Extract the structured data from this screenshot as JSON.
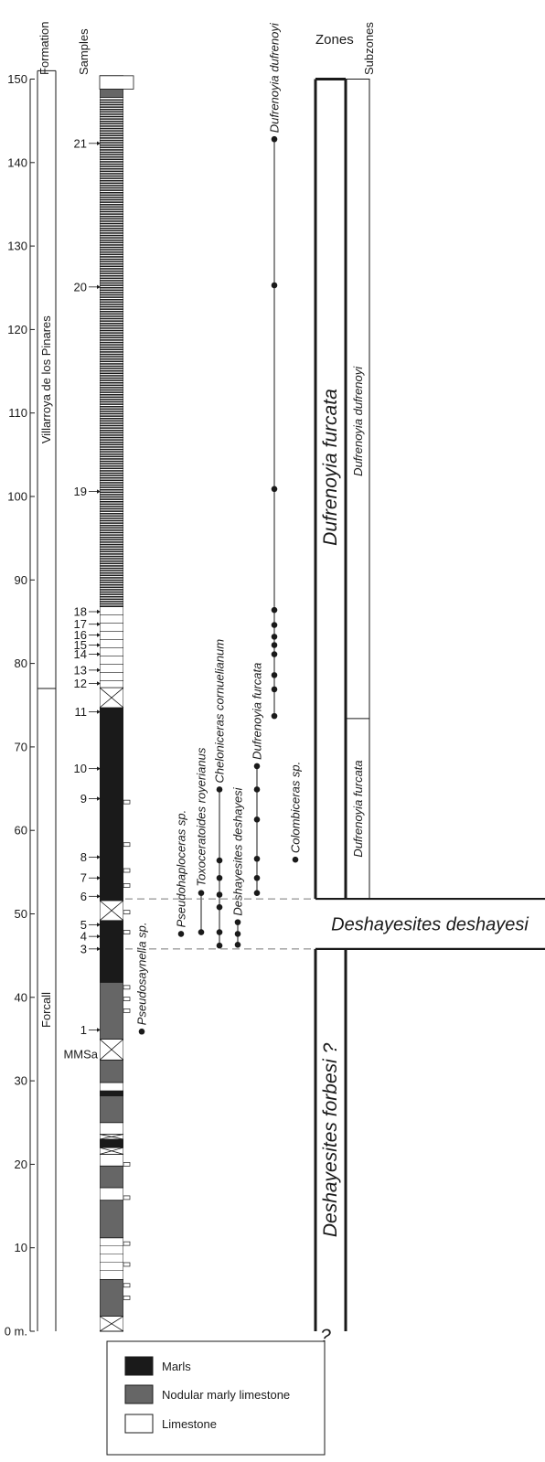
{
  "headers": {
    "formation": "Formation",
    "samples": "Samples",
    "zones": "Zones",
    "subzones": "Subzones"
  },
  "axis": {
    "ticks": [
      {
        "value": 0,
        "label": "0 m."
      },
      {
        "value": 10,
        "label": "10"
      },
      {
        "value": 20,
        "label": "20"
      },
      {
        "value": 30,
        "label": "30"
      },
      {
        "value": 40,
        "label": "40"
      },
      {
        "value": 50,
        "label": "50"
      },
      {
        "value": 60,
        "label": "60"
      },
      {
        "value": 70,
        "label": "70"
      },
      {
        "value": 80,
        "label": "80"
      },
      {
        "value": 90,
        "label": "90"
      },
      {
        "value": 100,
        "label": "100"
      },
      {
        "value": 110,
        "label": "110"
      },
      {
        "value": 120,
        "label": "120"
      },
      {
        "value": 130,
        "label": "130"
      },
      {
        "value": 140,
        "label": "140"
      },
      {
        "value": 150,
        "label": "150"
      }
    ],
    "range": [
      0,
      150
    ]
  },
  "formations": [
    {
      "name": "Forcall",
      "from": 0,
      "to": 77
    },
    {
      "name": "Villarroya de los Pinares",
      "from": 77,
      "to": 151
    }
  ],
  "samples": [
    {
      "label": "MMSa",
      "height": 33.2
    },
    {
      "label": "1",
      "height": 36.1
    },
    {
      "label": "3",
      "height": 45.8
    },
    {
      "label": "4",
      "height": 47.3
    },
    {
      "label": "5",
      "height": 48.7
    },
    {
      "label": "6",
      "height": 52.1
    },
    {
      "label": "7",
      "height": 54.3
    },
    {
      "label": "8",
      "height": 56.8
    },
    {
      "label": "9",
      "height": 63.8
    },
    {
      "label": "10",
      "height": 67.4
    },
    {
      "label": "11",
      "height": 74.2
    },
    {
      "label": "12",
      "height": 77.6
    },
    {
      "label": "13",
      "height": 79.2
    },
    {
      "label": "14",
      "height": 81.1
    },
    {
      "label": "15",
      "height": 82.2
    },
    {
      "label": "16",
      "height": 83.4
    },
    {
      "label": "17",
      "height": 84.7
    },
    {
      "label": "18",
      "height": 86.2
    },
    {
      "label": "19",
      "height": 100.6
    },
    {
      "label": "20",
      "height": 125.1
    },
    {
      "label": "21",
      "height": 142.3
    }
  ],
  "lithology": {
    "legend": [
      {
        "key": "marls",
        "label": "Marls",
        "color": "#1a1a1a"
      },
      {
        "key": "nodular",
        "label": "Nodular marly limestone",
        "color": "#666666"
      },
      {
        "key": "limestone",
        "label": "Limestone",
        "color": "#ffffff"
      }
    ],
    "units": [
      {
        "from": 0,
        "to": 1.8,
        "type": "covered"
      },
      {
        "from": 1.8,
        "to": 6.2,
        "type": "nodular"
      },
      {
        "from": 6.2,
        "to": 11.2,
        "type": "limestone"
      },
      {
        "from": 11.2,
        "to": 15.7,
        "type": "nodular"
      },
      {
        "from": 15.7,
        "to": 17.2,
        "type": "limestone"
      },
      {
        "from": 17.2,
        "to": 19.8,
        "type": "nodular"
      },
      {
        "from": 19.8,
        "to": 21.2,
        "type": "limestone"
      },
      {
        "from": 21.2,
        "to": 22.0,
        "type": "covered"
      },
      {
        "from": 22.0,
        "to": 23.0,
        "type": "marls"
      },
      {
        "from": 23.0,
        "to": 23.6,
        "type": "covered"
      },
      {
        "from": 23.6,
        "to": 25.0,
        "type": "limestone"
      },
      {
        "from": 25.0,
        "to": 28.2,
        "type": "nodular"
      },
      {
        "from": 28.2,
        "to": 28.8,
        "type": "marls"
      },
      {
        "from": 28.8,
        "to": 29.8,
        "type": "limestone"
      },
      {
        "from": 29.8,
        "to": 32.5,
        "type": "nodular"
      },
      {
        "from": 32.5,
        "to": 35.0,
        "type": "covered"
      },
      {
        "from": 35.0,
        "to": 41.8,
        "type": "nodular"
      },
      {
        "from": 41.8,
        "to": 49.2,
        "type": "marls"
      },
      {
        "from": 49.2,
        "to": 51.6,
        "type": "covered"
      },
      {
        "from": 51.6,
        "to": 74.7,
        "type": "marls"
      },
      {
        "from": 74.7,
        "to": 77.1,
        "type": "covered"
      },
      {
        "from": 77.1,
        "to": 86.8,
        "type": "limestone"
      },
      {
        "from": 86.8,
        "to": 147.8,
        "type": "banded"
      },
      {
        "from": 147.8,
        "to": 148.8,
        "type": "nodular"
      },
      {
        "from": 148.8,
        "to": 150.4,
        "type": "limestone"
      }
    ]
  },
  "taxa": [
    {
      "name": "Pseudosaynella sp.",
      "occurrences": [
        35.9
      ]
    },
    {
      "name": "Pseudohaploceras sp.",
      "occurrences": [
        47.6
      ]
    },
    {
      "name": "Toxoceratoides royerianus",
      "occurrences": [
        47.8,
        52.5
      ]
    },
    {
      "name": "Cheloniceras cornuelianum",
      "occurrences": [
        46.2,
        47.8,
        50.8,
        52.3,
        54.3,
        56.4,
        64.9
      ]
    },
    {
      "name": "Deshayesites deshayesi",
      "occurrences": [
        46.3,
        47.6,
        49.0
      ]
    },
    {
      "name": "Dufrenoyia furcata",
      "occurrences": [
        52.5,
        54.3,
        56.6,
        61.3,
        64.9,
        67.7
      ]
    },
    {
      "name": "Colombiceras sp.",
      "occurrences": [
        56.5
      ]
    },
    {
      "name": "Dufrenoyia dufrenoyi",
      "occurrences": [
        73.7,
        76.9,
        78.6,
        81.1,
        82.2,
        83.2,
        84.6,
        86.4,
        100.9,
        125.3,
        142.8
      ]
    }
  ],
  "zones": [
    {
      "name": "Deshayesites forbesi ?",
      "from": 0,
      "to": 45.8
    },
    {
      "name": "Deshayesites deshayesi",
      "from": 45.8,
      "to": 51.8
    },
    {
      "name": "Dufrenoyia furcata",
      "from": 51.8,
      "to": 150
    }
  ],
  "subzones": [
    {
      "name": "Dufrenoyia furcata",
      "from": 51.8,
      "to": 73.4
    },
    {
      "name": "Dufrenoyia dufrenoyi",
      "from": 73.4,
      "to": 150
    }
  ],
  "question_mark": "?"
}
